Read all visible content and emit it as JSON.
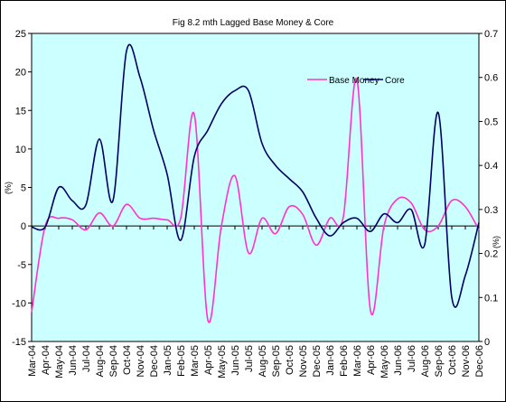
{
  "chart_data": {
    "type": "line",
    "title": "Fig 8.2 mth Lagged Base Money & Core",
    "y_label": "(%)",
    "y2_label": "(%)",
    "categories": [
      "Mar-04",
      "Apr-04",
      "May-04",
      "Jun-04",
      "Jul-04",
      "Aug-04",
      "Sep-04",
      "Oct-04",
      "Nov-04",
      "Dec-04",
      "Jan-05",
      "Feb-05",
      "Mar-05",
      "Apr-05",
      "May-05",
      "Jun-05",
      "Jul-05",
      "Aug-05",
      "Sep-05",
      "Oct-05",
      "Nov-05",
      "Dec-05",
      "Jan-06",
      "Feb-06",
      "Mar-06",
      "Apr-06",
      "May-06",
      "Jun-06",
      "Jul-06",
      "Aug-06",
      "Sep-06",
      "Oct-06",
      "Nov-06",
      "Dec-06"
    ],
    "series": [
      {
        "name": "Base Money",
        "color": "#ff33cc",
        "axis": "y",
        "values": [
          -11.2,
          0,
          1,
          0.8,
          -0.5,
          1.7,
          0,
          2.8,
          1,
          1,
          0.8,
          1,
          14.5,
          -12.2,
          0,
          6.5,
          -3.5,
          1,
          -1,
          2.5,
          1.5,
          -2.5,
          1,
          1.2,
          19,
          -11,
          0,
          3.5,
          3,
          -0.5,
          0,
          3.3,
          2.5,
          -0.5
        ]
      },
      {
        "name": "Core",
        "color": "#000066",
        "axis": "y2",
        "values": [
          0.26,
          0.26,
          0.35,
          0.32,
          0.31,
          0.46,
          0.32,
          0.66,
          0.6,
          0.48,
          0.38,
          0.23,
          0.42,
          0.48,
          0.54,
          0.57,
          0.57,
          0.45,
          0.4,
          0.37,
          0.34,
          0.28,
          0.24,
          0.27,
          0.28,
          0.25,
          0.29,
          0.27,
          0.3,
          0.22,
          0.52,
          0.1,
          0.15,
          0.27
        ]
      }
    ],
    "ylim": [
      -15,
      25
    ],
    "yticks": [
      -15,
      -10,
      -5,
      0,
      5,
      10,
      15,
      20,
      25
    ],
    "y2lim": [
      0,
      0.7
    ],
    "y2ticks": [
      0,
      0.1,
      0.2,
      0.3,
      0.4,
      0.5,
      0.6,
      0.7
    ],
    "legend": "upper right",
    "plot_background": "#ccffff"
  }
}
